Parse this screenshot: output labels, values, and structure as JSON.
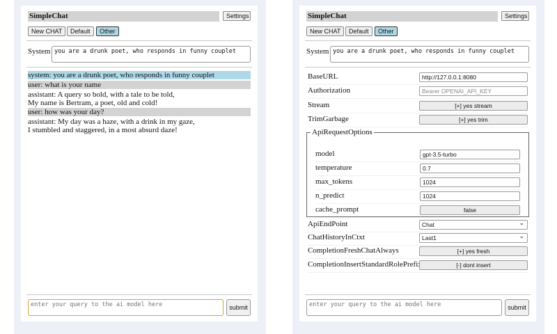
{
  "app_title": "SimpleChat",
  "settings_label": "Settings",
  "buttons": {
    "new_chat": "New CHAT",
    "default": "Default",
    "other": "Other"
  },
  "system_label": "System",
  "system_prompt": "you are a drunk poet, who responds in funny couplet",
  "chat": [
    {
      "role": "system",
      "text": "system: you are a drunk poet, who responds in funny couplet"
    },
    {
      "role": "user",
      "text": "user: what is your name"
    },
    {
      "role": "assistant",
      "text": "assistant: A query so bold, with a tale to be told,\nMy name is Bertram, a poet, old and cold!"
    },
    {
      "role": "user",
      "text": "user: how was your day?"
    },
    {
      "role": "assistant",
      "text": "assistant: My day was a haze, with a drink in my gaze,\nI stumbled and staggered, in a most absurd daze!"
    }
  ],
  "query_placeholder": "enter your query to the ai model here",
  "submit_label": "submit",
  "settings": {
    "base_url": {
      "label": "BaseURL",
      "value": "http://127.0.0.1:8080"
    },
    "authorization": {
      "label": "Authorization",
      "placeholder": "Bearer OPENAI_API_KEY"
    },
    "stream": {
      "label": "Stream",
      "value": "[+] yes stream"
    },
    "trim_garbage": {
      "label": "TrimGarbage",
      "value": "[+] yes trim"
    },
    "api_request_options": {
      "legend": "ApiRequestOptions",
      "model": {
        "label": "model",
        "value": "gpt-3.5-turbo"
      },
      "temperature": {
        "label": "temperature",
        "value": "0.7"
      },
      "max_tokens": {
        "label": "max_tokens",
        "value": "1024"
      },
      "n_predict": {
        "label": "n_predict",
        "value": "1024"
      },
      "cache_prompt": {
        "label": "cache_prompt",
        "value": "false"
      }
    },
    "api_endpoint": {
      "label": "ApiEndPoint",
      "value": "Chat"
    },
    "chat_history": {
      "label": "ChatHistoryInCtxt",
      "value": "Last1"
    },
    "fresh_chat": {
      "label": "CompletionFreshChatAlways",
      "value": "[+] yes fresh"
    },
    "insert_prefix": {
      "label": "CompletionInsertStandardRolePrefix",
      "value": "[-] dont insert"
    }
  },
  "colors": {
    "system_msg": "#add8e6",
    "user_msg": "#d3d3d3",
    "selected_button": "#add8e6",
    "focus_border": "#d9a030"
  }
}
